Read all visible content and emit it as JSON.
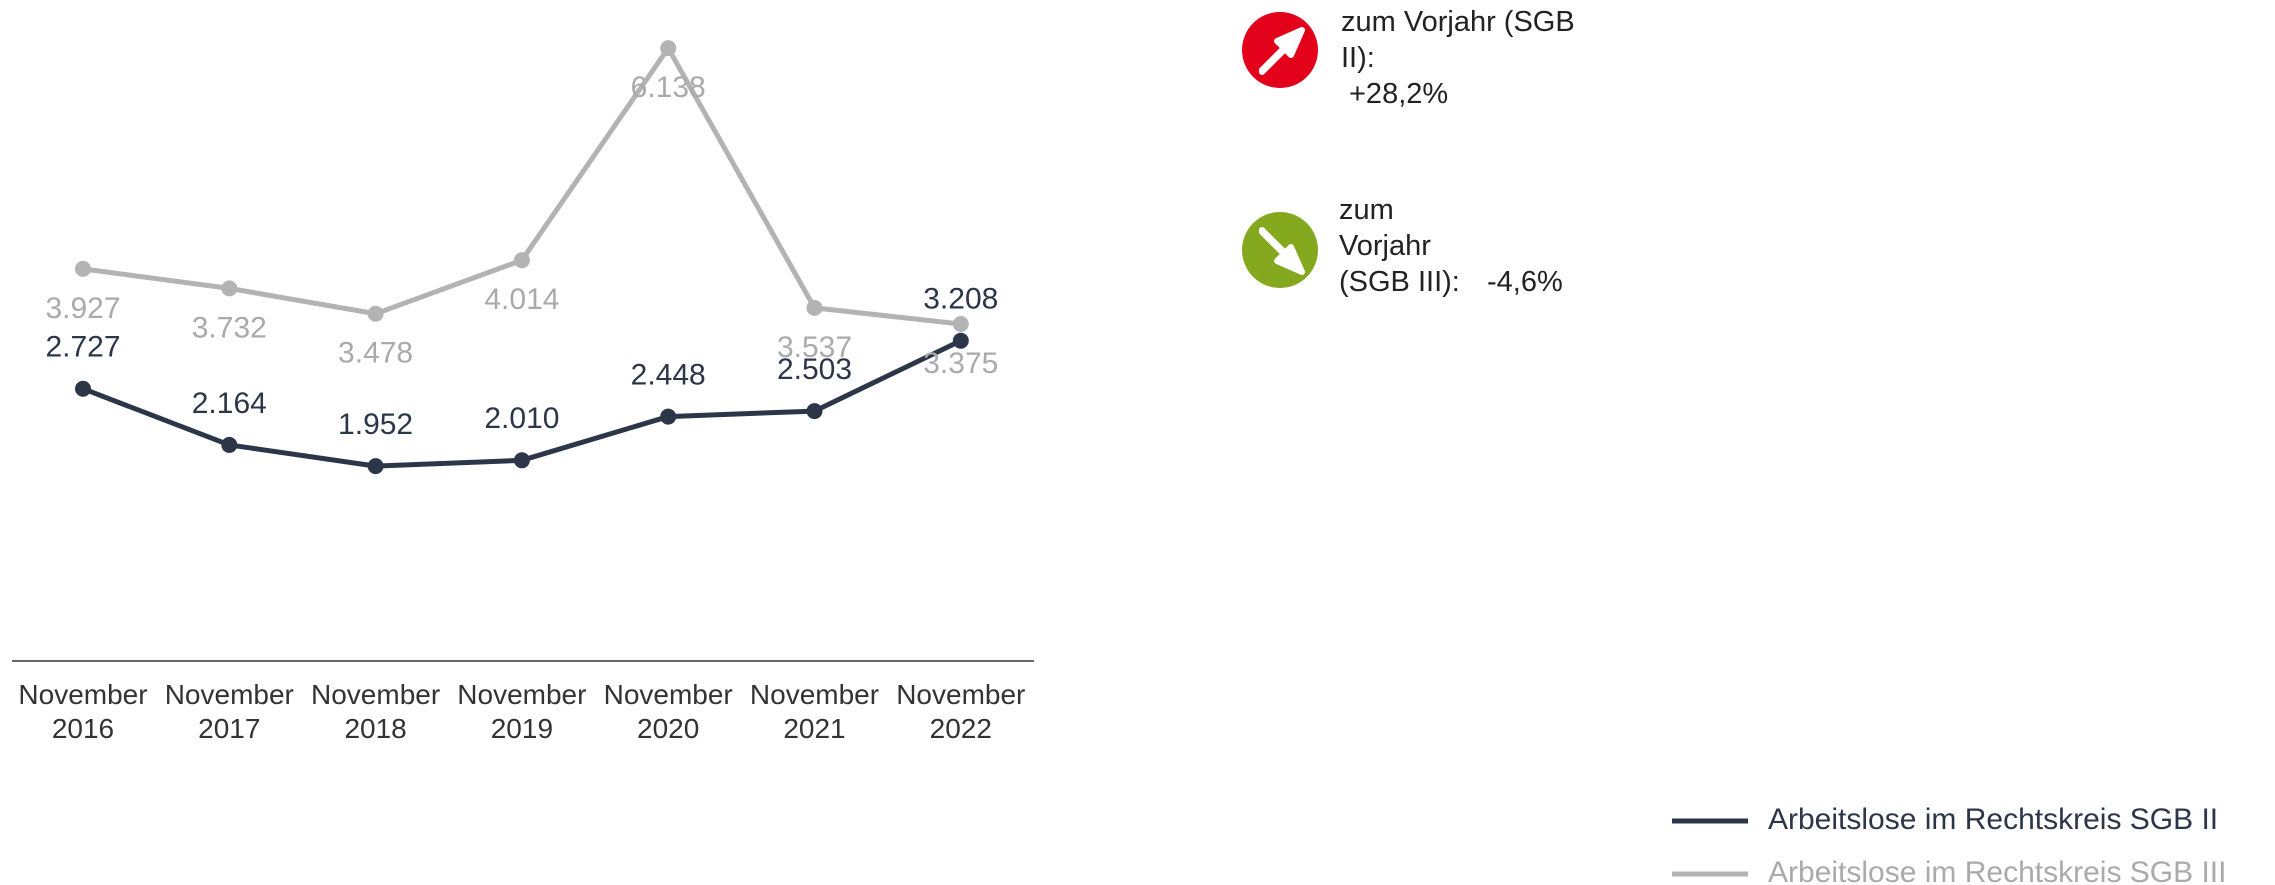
{
  "chart_data": {
    "type": "line",
    "categories": [
      "November 2016",
      "November 2017",
      "November 2018",
      "November 2019",
      "November 2020",
      "November 2021",
      "November 2022"
    ],
    "series": [
      {
        "name": "Arbeitslose im Rechtskreis SGB II",
        "color": "#2d3648",
        "values": [
          2727,
          2164,
          1952,
          2010,
          2448,
          2503,
          3208
        ],
        "value_labels": [
          "2.727",
          "2.164",
          "1.952",
          "2.010",
          "2.448",
          "2.503",
          "3.208"
        ]
      },
      {
        "name": "Arbeitslose im Rechtskreis SGB III",
        "color": "#b3b3b3",
        "values": [
          3927,
          3732,
          3478,
          4014,
          6138,
          3537,
          3375
        ],
        "value_labels": [
          "3.927",
          "3.732",
          "3.478",
          "4.014",
          "6.138",
          "3.537",
          "3.375"
        ]
      }
    ],
    "ylim": [
      0,
      6500
    ],
    "legend": "bottom-right",
    "annotations": [
      {
        "label": "zum Vorjahr (SGB II):",
        "value": "+28,2%",
        "color": "#e2001a"
      },
      {
        "label": "zum Vorjahr (SGB III):",
        "value": "-4,6%",
        "color": "#84a91f"
      }
    ]
  }
}
